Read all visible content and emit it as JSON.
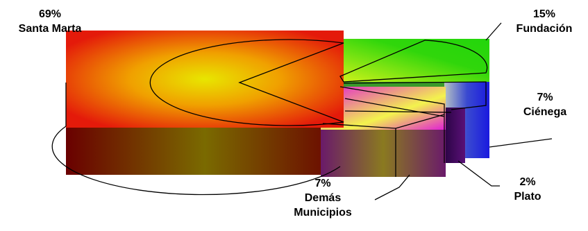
{
  "chart_data": {
    "type": "pie",
    "style": "3d-exploded",
    "slices": [
      {
        "label": "Santa Marta",
        "pct_text": "69%",
        "value": 69
      },
      {
        "label": "Fundación",
        "pct_text": "15%",
        "value": 15
      },
      {
        "label": "Ciénega",
        "pct_text": "7%",
        "value": 7
      },
      {
        "label": "Plato",
        "pct_text": "2%",
        "value": 2
      },
      {
        "label": "Demás Municipios",
        "pct_text": "7%",
        "value": 7
      }
    ],
    "colors": {
      "santa_marta": [
        "#e41a0a",
        "#e7e000"
      ],
      "fundacion": [
        "#23d60b",
        "#ccf21a"
      ],
      "cienega": [
        "#1a1adf",
        "#9bb2bb"
      ],
      "plato": [
        "#5a1077",
        "#2a0444"
      ],
      "demas_municipios": [
        "#e21dd7",
        "#f3f34d"
      ]
    }
  }
}
